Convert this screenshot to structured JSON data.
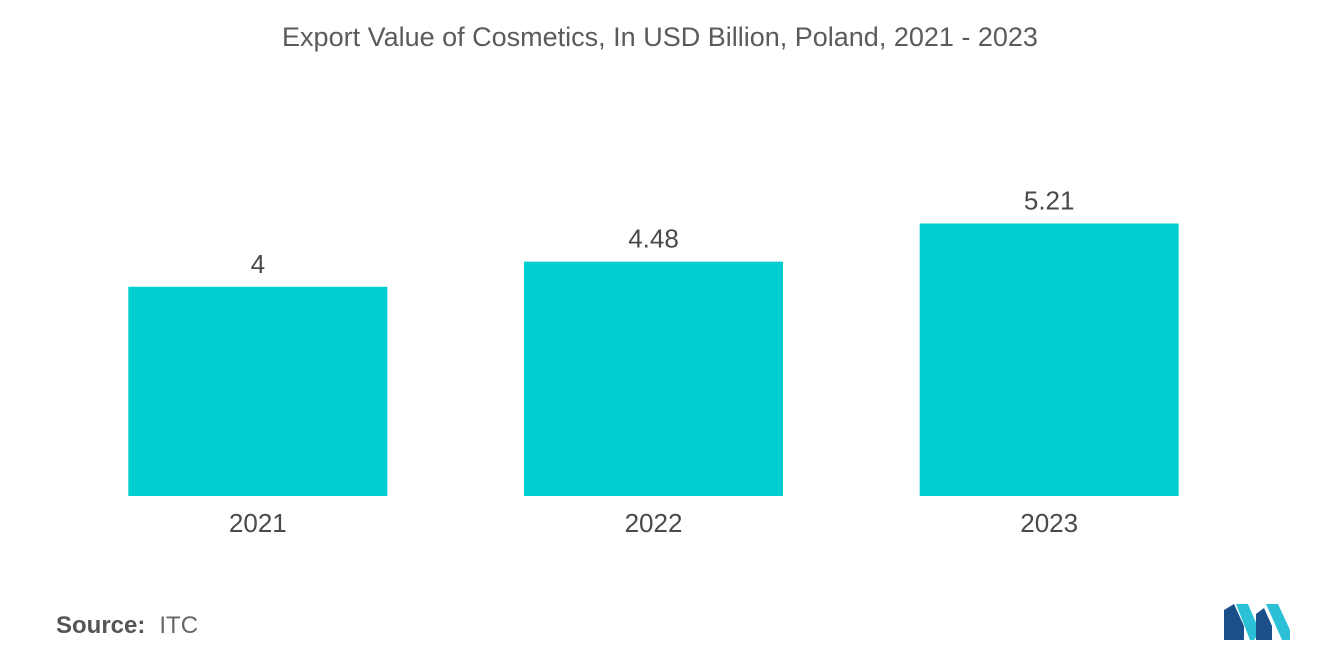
{
  "chart_data": {
    "type": "bar",
    "title": "Export Value of Cosmetics, In USD Billion, Poland, 2021 - 2023",
    "categories": [
      "2021",
      "2022",
      "2023"
    ],
    "values": [
      4,
      4.48,
      5.21
    ],
    "value_labels": [
      "4",
      "4.48",
      "5.21"
    ],
    "ylim": [
      0,
      5.2
    ],
    "bar_color": "#00CED1",
    "grid": false
  },
  "footer": {
    "source_label": "Source:",
    "source_value": "ITC"
  },
  "logo": {
    "icon": "mordor-intelligence-logo",
    "colors": [
      "#1b4f8a",
      "#2bc0d6"
    ]
  }
}
